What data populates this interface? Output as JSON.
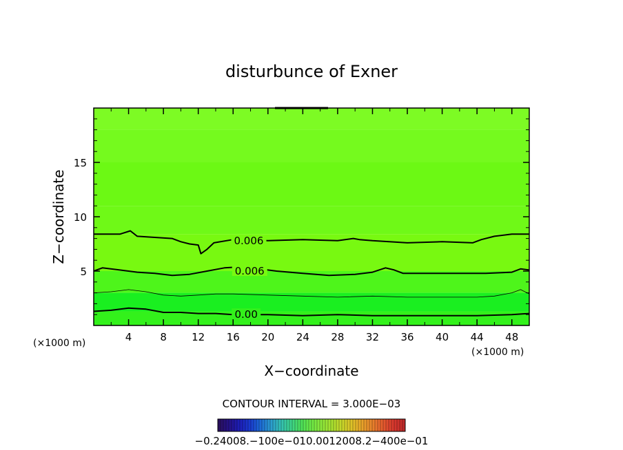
{
  "chart_data": {
    "type": "contour",
    "title": "disturbunce of Exner",
    "xlabel": "X−coordinate",
    "ylabel": "Z−coordinate",
    "x_unit_left": "(×1000 m)",
    "x_unit_right": "(×1000 m)",
    "xlim": [
      0,
      50
    ],
    "ylim": [
      0,
      20
    ],
    "x_ticks": [
      4,
      8,
      12,
      16,
      20,
      24,
      28,
      32,
      36,
      40,
      44,
      48
    ],
    "x_tick_labels": [
      "4",
      "8",
      "12",
      "16",
      "20",
      "24",
      "28",
      "32",
      "36",
      "40",
      "44",
      "48"
    ],
    "y_ticks": [
      5,
      10,
      15
    ],
    "y_tick_labels": [
      "5",
      "10",
      "15"
    ],
    "contour_interval_text": "CONTOUR INTERVAL = 3.000E−03",
    "contours": [
      {
        "label": "0.006",
        "label_x": 17.8,
        "label_y": 7.8,
        "thick": true,
        "points": [
          [
            0,
            8.4
          ],
          [
            3,
            8.4
          ],
          [
            4.2,
            8.7
          ],
          [
            5,
            8.2
          ],
          [
            7,
            8.1
          ],
          [
            9,
            8.0
          ],
          [
            10,
            7.7
          ],
          [
            11,
            7.5
          ],
          [
            12,
            7.4
          ],
          [
            12.3,
            6.6
          ],
          [
            13,
            7.0
          ],
          [
            13.8,
            7.6
          ],
          [
            16,
            7.9
          ],
          [
            20,
            7.8
          ],
          [
            24,
            7.9
          ],
          [
            28,
            7.8
          ],
          [
            29.8,
            8.0
          ],
          [
            30.5,
            7.9
          ],
          [
            32,
            7.8
          ],
          [
            36,
            7.6
          ],
          [
            40,
            7.7
          ],
          [
            43.5,
            7.6
          ],
          [
            44.5,
            7.9
          ],
          [
            46,
            8.2
          ],
          [
            48,
            8.4
          ],
          [
            50,
            8.4
          ]
        ]
      },
      {
        "label": "0.006",
        "label_x": 17.9,
        "label_y": 5.0,
        "thick": true,
        "points": [
          [
            0,
            5.0
          ],
          [
            1,
            5.3
          ],
          [
            3,
            5.1
          ],
          [
            5,
            4.9
          ],
          [
            7,
            4.8
          ],
          [
            9,
            4.6
          ],
          [
            11,
            4.7
          ],
          [
            13,
            5.0
          ],
          [
            15,
            5.3
          ],
          [
            17,
            5.4
          ],
          [
            19,
            5.2
          ],
          [
            21,
            5.0
          ],
          [
            24,
            4.8
          ],
          [
            27,
            4.6
          ],
          [
            30,
            4.7
          ],
          [
            32,
            4.9
          ],
          [
            33.5,
            5.3
          ],
          [
            34.5,
            5.1
          ],
          [
            35.5,
            4.8
          ],
          [
            38,
            4.8
          ],
          [
            42,
            4.8
          ],
          [
            45,
            4.8
          ],
          [
            48,
            4.9
          ],
          [
            49,
            5.2
          ],
          [
            50,
            5.1
          ]
        ]
      },
      {
        "label": "",
        "thick": false,
        "points": [
          [
            0,
            3.0
          ],
          [
            2,
            3.1
          ],
          [
            4,
            3.3
          ],
          [
            6,
            3.1
          ],
          [
            8,
            2.8
          ],
          [
            10,
            2.7
          ],
          [
            12,
            2.8
          ],
          [
            14,
            2.9
          ],
          [
            16,
            2.9
          ],
          [
            20,
            2.8
          ],
          [
            24,
            2.7
          ],
          [
            28,
            2.6
          ],
          [
            32,
            2.7
          ],
          [
            36,
            2.6
          ],
          [
            40,
            2.6
          ],
          [
            44,
            2.6
          ],
          [
            46,
            2.7
          ],
          [
            48,
            3.0
          ],
          [
            49,
            3.3
          ],
          [
            50,
            2.9
          ]
        ]
      },
      {
        "label": "0.00",
        "label_x": 17.5,
        "label_y": 1.0,
        "thick": true,
        "points": [
          [
            0,
            1.3
          ],
          [
            2,
            1.4
          ],
          [
            4,
            1.6
          ],
          [
            6,
            1.5
          ],
          [
            8,
            1.2
          ],
          [
            10,
            1.2
          ],
          [
            12,
            1.1
          ],
          [
            14,
            1.1
          ],
          [
            16,
            1.0
          ],
          [
            20,
            1.0
          ],
          [
            24,
            0.9
          ],
          [
            28,
            1.0
          ],
          [
            32,
            0.9
          ],
          [
            36,
            0.9
          ],
          [
            40,
            0.9
          ],
          [
            44,
            0.9
          ],
          [
            48,
            1.0
          ],
          [
            50,
            1.1
          ]
        ]
      }
    ],
    "fill_bands": [
      {
        "z0": 18.0,
        "z1": 20.0,
        "color": "#7dfb24"
      },
      {
        "z0": 15.0,
        "z1": 18.0,
        "color": "#75fa1e"
      },
      {
        "z0": 11.0,
        "z1": 15.0,
        "color": "#6cf914"
      },
      {
        "z0": 8.4,
        "z1": 11.0,
        "color": "#6ff917"
      },
      {
        "z0": 5.0,
        "z1": 8.4,
        "color": "#78f911"
      },
      {
        "z0": 3.0,
        "z1": 5.0,
        "color": "#4ef51b"
      },
      {
        "z0": 1.3,
        "z1": 3.0,
        "color": "#1aef20"
      },
      {
        "z0": 0.0,
        "z1": 1.3,
        "color": "#33f11b"
      }
    ],
    "colorbar": {
      "labels_text": "−0.24008.−100e−010.0012008.2−400e−01",
      "colors": [
        "#2a1060",
        "#25128a",
        "#1d1fb8",
        "#1a3ad0",
        "#1d6ad6",
        "#2b9ad0",
        "#34c0b4",
        "#3dd28a",
        "#4ce05a",
        "#6de845",
        "#8de63a",
        "#a8e030",
        "#c8d62a",
        "#e0c028",
        "#e8a02a",
        "#e8802c",
        "#e45a2e",
        "#d8382e",
        "#c02a2a"
      ]
    }
  }
}
